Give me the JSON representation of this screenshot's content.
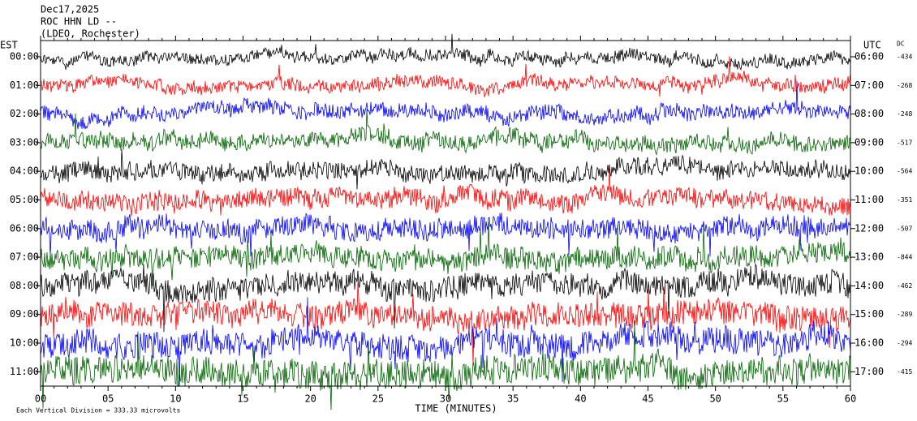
{
  "header": {
    "lines": [
      "Dec17,2025",
      "ROC HHN LD --",
      "(LDEO, Rochester)"
    ]
  },
  "left_title": "EST",
  "right_title": "UTC",
  "dc_title": "DC",
  "rows": [
    {
      "est": "00:00",
      "utc": "06:00",
      "dc": "-434",
      "color": "#000000"
    },
    {
      "est": "01:00",
      "utc": "07:00",
      "dc": "-268",
      "color": "#ff0000"
    },
    {
      "est": "02:00",
      "utc": "08:00",
      "dc": "-248",
      "color": "#0000ff"
    },
    {
      "est": "03:00",
      "utc": "09:00",
      "dc": "-517",
      "color": "#006400"
    },
    {
      "est": "04:00",
      "utc": "10:00",
      "dc": "-564",
      "color": "#000000"
    },
    {
      "est": "05:00",
      "utc": "11:00",
      "dc": "-351",
      "color": "#ff0000"
    },
    {
      "est": "06:00",
      "utc": "12:00",
      "dc": "-507",
      "color": "#0000ff"
    },
    {
      "est": "07:00",
      "utc": "13:00",
      "dc": "-844",
      "color": "#006400"
    },
    {
      "est": "08:00",
      "utc": "14:00",
      "dc": "-462",
      "color": "#000000"
    },
    {
      "est": "09:00",
      "utc": "15:00",
      "dc": "-289",
      "color": "#ff0000"
    },
    {
      "est": "10:00",
      "utc": "16:00",
      "dc": "-294",
      "color": "#0000ff"
    },
    {
      "est": "11:00",
      "utc": "17:00",
      "dc": "-415",
      "color": "#006400"
    }
  ],
  "x_axis": {
    "label": "TIME (MINUTES)",
    "ticks": [
      "00",
      "05",
      "10",
      "15",
      "20",
      "25",
      "30",
      "35",
      "40",
      "45",
      "50",
      "55",
      "60"
    ]
  },
  "footer": "Each Vertical Division = 333.33 microvolts"
}
